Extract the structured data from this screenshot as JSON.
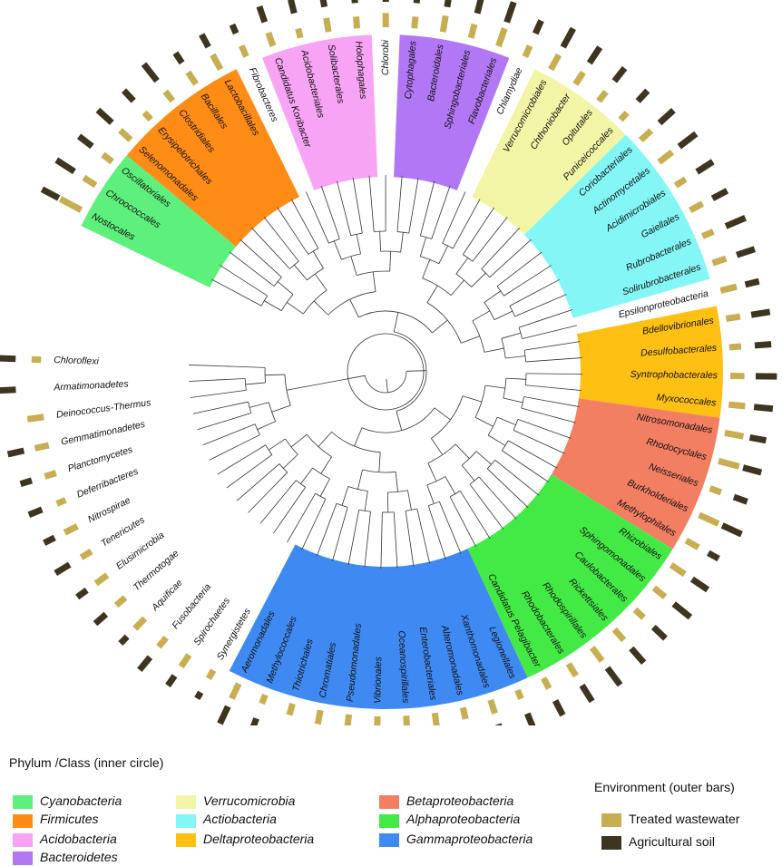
{
  "colors": {
    "Cyanobacteria": "#5ef07c",
    "Firmicutes": "#ff8c17",
    "Acidobacteria": "#f8a4f4",
    "Bacteroidetes": "#b277f4",
    "Verrucomicrobia": "#f2f5a6",
    "Actiobacteria": "#84f6f5",
    "Deltaproteobacteria": "#ffc014",
    "Betaproteobacteria": "#f37f63",
    "Alphaproteobacteria": "#43ea45",
    "Gammaproteobacteria": "#3f8af2",
    "Treated wastewater": "#c7ae52",
    "Agricultural soil": "#3d3520"
  },
  "leaves": [
    {
      "name": "Nostocales",
      "group": "Cyanobacteria",
      "tw": 1.0,
      "ag": 0.8
    },
    {
      "name": "Chroococcales",
      "group": "Cyanobacteria",
      "tw": 0.6,
      "ag": 0.9
    },
    {
      "name": "Oscillatoriales",
      "group": "Cyanobacteria",
      "tw": 0.5,
      "ag": 0.7
    },
    {
      "name": "Selenomonadales",
      "group": "Firmicutes",
      "tw": 0.6,
      "ag": 0.8
    },
    {
      "name": "Erysipelotrichales",
      "group": "Firmicutes",
      "tw": 0.4,
      "ag": 0.6
    },
    {
      "name": "Clostridiales",
      "group": "Firmicutes",
      "tw": 0.5,
      "ag": 0.9
    },
    {
      "name": "Bacillales",
      "group": "Firmicutes",
      "tw": 0.6,
      "ag": 0.5
    },
    {
      "name": "Lactobacillales",
      "group": "Firmicutes",
      "tw": 0.7,
      "ag": 0.6
    },
    {
      "name": "Fibrobacteres",
      "group": null,
      "tw": 0.5,
      "ag": 0.4
    },
    {
      "name": "Candidatus Koribacter",
      "group": "Acidobacteria",
      "tw": 0.6,
      "ag": 0.7
    },
    {
      "name": "Acidobacteriales",
      "group": "Acidobacteria",
      "tw": 0.4,
      "ag": 0.6
    },
    {
      "name": "Solibacterales",
      "group": "Acidobacteria",
      "tw": 0.6,
      "ag": 0.5
    },
    {
      "name": "Holophagales",
      "group": "Acidobacteria",
      "tw": 0.5,
      "ag": 0.4
    },
    {
      "name": "Chlorobi",
      "group": null,
      "tw": 0.6,
      "ag": 0.5
    },
    {
      "name": "Cytophagales",
      "group": "Bacteroidetes",
      "tw": 0.5,
      "ag": 0.8
    },
    {
      "name": "Bacteroidales",
      "group": "Bacteroidetes",
      "tw": 0.7,
      "ag": 0.6
    },
    {
      "name": "Sphingobacteriales",
      "group": "Bacteroidetes",
      "tw": 0.6,
      "ag": 0.7
    },
    {
      "name": "Flavobacteriales",
      "group": "Bacteroidetes",
      "tw": 0.8,
      "ag": 0.9
    },
    {
      "name": "Chlamydiae",
      "group": null,
      "tw": 0.5,
      "ag": 0.6
    },
    {
      "name": "Verrucomicrobiales",
      "group": "Verrucomicrobia",
      "tw": 0.7,
      "ag": 0.9
    },
    {
      "name": "Chthoniobacter",
      "group": "Verrucomicrobia",
      "tw": 0.6,
      "ag": 0.8
    },
    {
      "name": "Opitutales",
      "group": "Verrucomicrobia",
      "tw": 0.5,
      "ag": 0.7
    },
    {
      "name": "Puniceicoccales",
      "group": "Verrucomicrobia",
      "tw": 0.4,
      "ag": 0.6
    },
    {
      "name": "Coriobacteriales",
      "group": "Actiobacteria",
      "tw": 0.6,
      "ag": 0.8
    },
    {
      "name": "Actinomycetales",
      "group": "Actiobacteria",
      "tw": 0.7,
      "ag": 0.9
    },
    {
      "name": "Acidimicrobiales",
      "group": "Actiobacteria",
      "tw": 0.5,
      "ag": 0.8
    },
    {
      "name": "Gaiellales",
      "group": "Actiobacteria",
      "tw": 0.6,
      "ag": 0.7
    },
    {
      "name": "Rubrobacterales",
      "group": "Actiobacteria",
      "tw": 0.5,
      "ag": 0.9
    },
    {
      "name": "Solirubrobacterales",
      "group": "Actiobacteria",
      "tw": 0.6,
      "ag": 0.8
    },
    {
      "name": "Epsilonproteobacteria",
      "group": null,
      "tw": 0.7,
      "ag": 0.6
    },
    {
      "name": "Bdellovibrionales",
      "group": "Deltaproteobacteria",
      "tw": 0.6,
      "ag": 0.8
    },
    {
      "name": "Desulfobacterales",
      "group": "Deltaproteobacteria",
      "tw": 0.5,
      "ag": 0.7
    },
    {
      "name": "Syntrophobacterales",
      "group": "Deltaproteobacteria",
      "tw": 0.6,
      "ag": 0.9
    },
    {
      "name": "Myxococcales",
      "group": "Deltaproteobacteria",
      "tw": 0.7,
      "ag": 0.8
    },
    {
      "name": "Nitrosomonadales",
      "group": "Betaproteobacteria",
      "tw": 0.8,
      "ag": 0.7
    },
    {
      "name": "Rhodocyclales",
      "group": "Betaproteobacteria",
      "tw": 0.9,
      "ag": 0.8
    },
    {
      "name": "Neisseriales",
      "group": "Betaproteobacteria",
      "tw": 0.5,
      "ag": 0.6
    },
    {
      "name": "Burkholderiales",
      "group": "Betaproteobacteria",
      "tw": 0.9,
      "ag": 0.9
    },
    {
      "name": "Methylophilales",
      "group": "Betaproteobacteria",
      "tw": 0.6,
      "ag": 0.5
    },
    {
      "name": "Rhizobiales",
      "group": "Alphaproteobacteria",
      "tw": 0.7,
      "ag": 0.8
    },
    {
      "name": "Sphingomonadales",
      "group": "Alphaproteobacteria",
      "tw": 0.6,
      "ag": 0.9
    },
    {
      "name": "Caulobacterales",
      "group": "Alphaproteobacteria",
      "tw": 0.5,
      "ag": 0.7
    },
    {
      "name": "Rickettsiales",
      "group": "Alphaproteobacteria",
      "tw": 0.6,
      "ag": 0.8
    },
    {
      "name": "Rhodospirillales",
      "group": "Alphaproteobacteria",
      "tw": 0.7,
      "ag": 0.9
    },
    {
      "name": "Rhodobacterales",
      "group": "Alphaproteobacteria",
      "tw": 0.6,
      "ag": 0.8
    },
    {
      "name": "Candidatus Pelagibacter",
      "group": "Alphaproteobacteria",
      "tw": 0.5,
      "ag": 0.7
    },
    {
      "name": "Legionellales",
      "group": "Gammaproteobacteria",
      "tw": 0.4,
      "ag": 0.6
    },
    {
      "name": "Xanthomonadales",
      "group": "Gammaproteobacteria",
      "tw": 0.6,
      "ag": 0.8
    },
    {
      "name": "Alteromonadales",
      "group": "Gammaproteobacteria",
      "tw": 0.5,
      "ag": 0.7
    },
    {
      "name": "Enterobacteriales",
      "group": "Gammaproteobacteria",
      "tw": 0.7,
      "ag": 0.9
    },
    {
      "name": "Oceanospirillales",
      "group": "Gammaproteobacteria",
      "tw": 0.5,
      "ag": 0.8
    },
    {
      "name": "Vibrionales",
      "group": "Gammaproteobacteria",
      "tw": 0.6,
      "ag": 0.6
    },
    {
      "name": "Pseudomonadales",
      "group": "Gammaproteobacteria",
      "tw": 0.7,
      "ag": 0.9
    },
    {
      "name": "Chromatiales",
      "group": "Gammaproteobacteria",
      "tw": 0.6,
      "ag": 0.8
    },
    {
      "name": "Thiotrichales",
      "group": "Gammaproteobacteria",
      "tw": 0.5,
      "ag": 0.6
    },
    {
      "name": "Methylococcales",
      "group": "Gammaproteobacteria",
      "tw": 0.4,
      "ag": 0.5
    },
    {
      "name": "Aeromonadales",
      "group": "Gammaproteobacteria",
      "tw": 0.7,
      "ag": 0.8
    },
    {
      "name": "Synergistetes",
      "group": null,
      "tw": 0.4,
      "ag": 0.3
    },
    {
      "name": "Spirochaetes",
      "group": null,
      "tw": 0.6,
      "ag": 0.5
    },
    {
      "name": "Fusobacteria",
      "group": null,
      "tw": 0.5,
      "ag": 0.7
    },
    {
      "name": "Aquificae",
      "group": null,
      "tw": 0.6,
      "ag": 0.4
    },
    {
      "name": "Thermotogae",
      "group": null,
      "tw": 0.5,
      "ag": 0.6
    },
    {
      "name": "Elusimicrobia",
      "group": null,
      "tw": 0.6,
      "ag": 0.5
    },
    {
      "name": "Tenericutes",
      "group": null,
      "tw": 0.5,
      "ag": 0.7
    },
    {
      "name": "Nitrospirae",
      "group": null,
      "tw": 0.6,
      "ag": 0.5
    },
    {
      "name": "Deferribacteres",
      "group": null,
      "tw": 0.4,
      "ag": 0.6
    },
    {
      "name": "Planctomycetes",
      "group": null,
      "tw": 0.5,
      "ag": 0.5
    },
    {
      "name": "Gemmatimonadetes",
      "group": null,
      "tw": 0.6,
      "ag": 0.7
    },
    {
      "name": "Deinococcus-Thermus",
      "group": null,
      "tw": 0.7,
      "ag": 0.0
    },
    {
      "name": "Armatimonadetes",
      "group": null,
      "tw": 0.0,
      "ag": 0.7
    },
    {
      "name": "Chloroflexi",
      "group": null,
      "tw": 0.4,
      "ag": 0.8
    }
  ],
  "legend": {
    "phylum_title": "Phylum /Class (inner circle)",
    "phylum_items": [
      "Cyanobacteria",
      "Firmicutes",
      "Acidobacteria",
      "Bacteroidetes",
      "Verrucomicrobia",
      "Actiobacteria",
      "Deltaproteobacteria",
      "Betaproteobacteria",
      "Alphaproteobacteria",
      "Gammaproteobacteria"
    ],
    "env_title": "Environment (outer bars)",
    "env_items": [
      "Treated wastewater",
      "Agricultural soil"
    ]
  }
}
